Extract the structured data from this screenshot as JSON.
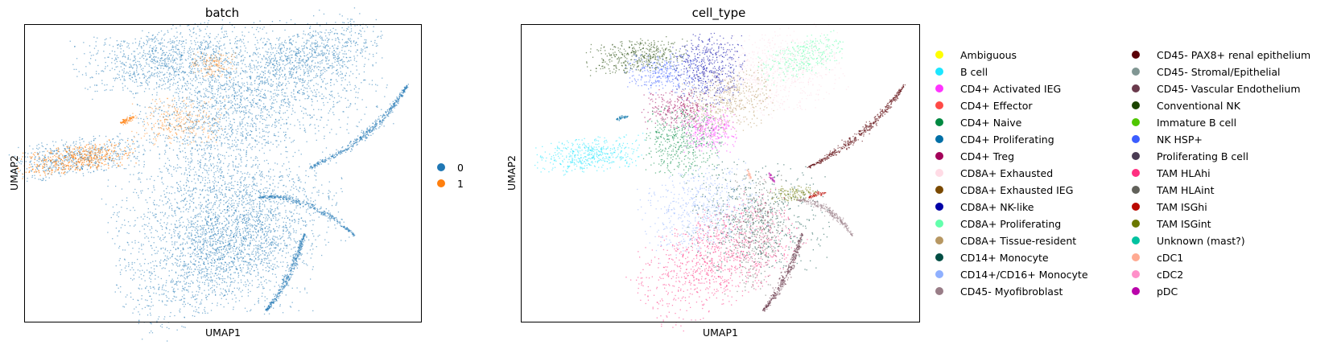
{
  "chart_data": [
    {
      "type": "scatter",
      "title": "batch",
      "xlabel": "UMAP1",
      "ylabel": "UMAP2",
      "grid": false,
      "legend_position": "right",
      "legend": [
        {
          "label": "0",
          "color": "#1f77b4"
        },
        {
          "label": "1",
          "color": "#ff7f0e"
        }
      ]
    },
    {
      "type": "scatter",
      "title": "cell_type",
      "xlabel": "UMAP1",
      "ylabel": "UMAP2",
      "grid": false,
      "legend_position": "right",
      "legend": [
        {
          "label": "Ambiguous",
          "color": "#ffff00"
        },
        {
          "label": "B cell",
          "color": "#1ce6ff"
        },
        {
          "label": "CD4+ Activated IEG",
          "color": "#ff34ff"
        },
        {
          "label": "CD4+ Effector",
          "color": "#ff4a46"
        },
        {
          "label": "CD4+ Naive",
          "color": "#008941"
        },
        {
          "label": "CD4+ Proliferating",
          "color": "#006fa6"
        },
        {
          "label": "CD4+ Treg",
          "color": "#a30059"
        },
        {
          "label": "CD8A+ Exhausted",
          "color": "#ffdbe5"
        },
        {
          "label": "CD8A+ Exhausted IEG",
          "color": "#7a4900"
        },
        {
          "label": "CD8A+ NK-like",
          "color": "#0000a6"
        },
        {
          "label": "CD8A+ Proliferating",
          "color": "#63ffac"
        },
        {
          "label": "CD8A+ Tissue-resident",
          "color": "#b79762"
        },
        {
          "label": "CD14+ Monocyte",
          "color": "#004d43"
        },
        {
          "label": "CD14+/CD16+ Monocyte",
          "color": "#8fb0ff"
        },
        {
          "label": "CD45- Myofibroblast",
          "color": "#997d87"
        },
        {
          "label": "CD45- PAX8+ renal epithelium",
          "color": "#5a0007"
        },
        {
          "label": "CD45- Stromal/Epithelial",
          "color": "#809693"
        },
        {
          "label": "CD45- Vascular Endothelium",
          "color": "#6a3a4c"
        },
        {
          "label": "Conventional NK",
          "color": "#1b4400"
        },
        {
          "label": "Immature B cell",
          "color": "#4fc601"
        },
        {
          "label": "NK HSP+",
          "color": "#3b5dff"
        },
        {
          "label": "Proliferating B cell",
          "color": "#4a3b53"
        },
        {
          "label": "TAM HLAhi",
          "color": "#ff2f80"
        },
        {
          "label": "TAM HLAint",
          "color": "#61615a"
        },
        {
          "label": "TAM ISGhi",
          "color": "#ba0900"
        },
        {
          "label": "TAM ISGint",
          "color": "#6b7900"
        },
        {
          "label": "Unknown (mast?)",
          "color": "#00c2a0"
        },
        {
          "label": "cDC1",
          "color": "#ffaa92"
        },
        {
          "label": "cDC2",
          "color": "#ff90c9"
        },
        {
          "label": "pDC",
          "color": "#b903aa"
        }
      ]
    }
  ]
}
